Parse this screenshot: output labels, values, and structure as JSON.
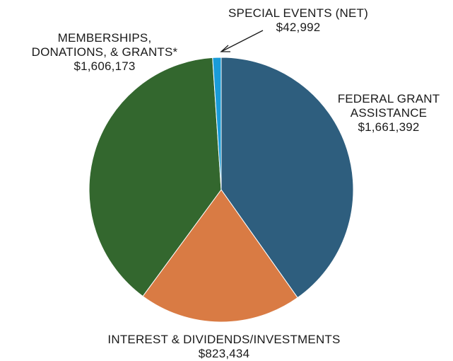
{
  "chart_data": {
    "type": "pie",
    "title": "",
    "colors": {
      "federal_grant": "#2e5e7e",
      "interest": "#d97b44",
      "memberships": "#33672e",
      "special_events": "#1a9cd8"
    },
    "slices": [
      {
        "key": "federal_grant",
        "label_lines": [
          "FEDERAL GRANT",
          "ASSISTANCE"
        ],
        "value": 1661392,
        "value_label": "$1,661,392",
        "color": "#2e5e7e"
      },
      {
        "key": "interest",
        "label_lines": [
          "INTEREST & DIVIDENDS/INVESTMENTS"
        ],
        "value": 823434,
        "value_label": "$823,434",
        "color": "#d97b44"
      },
      {
        "key": "memberships",
        "label_lines": [
          "MEMBERSHIPS,",
          "DONATIONS, & GRANTS*"
        ],
        "value": 1606173,
        "value_label": "$1,606,173",
        "color": "#33672e"
      },
      {
        "key": "special_events",
        "label_lines": [
          "SPECIAL EVENTS (NET)"
        ],
        "value": 42992,
        "value_label": "$42,992",
        "color": "#1a9cd8"
      }
    ],
    "legend": "none",
    "start": "top",
    "direction": "clockwise"
  }
}
